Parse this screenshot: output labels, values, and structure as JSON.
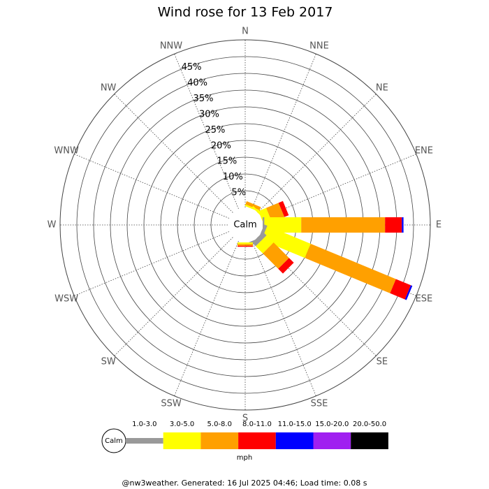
{
  "chart_data": {
    "type": "windrose",
    "title": "Wind rose for 13 Feb 2017",
    "directions": [
      "N",
      "NNE",
      "NE",
      "ENE",
      "E",
      "ESE",
      "SE",
      "SSE",
      "S",
      "SSW",
      "SW",
      "WSW",
      "W",
      "WNW",
      "NW",
      "NNW"
    ],
    "calm_label": "Calm",
    "unit": "mph",
    "rlim": [
      0,
      50
    ],
    "rticks": [
      {
        "value": 5,
        "label": "5%"
      },
      {
        "value": 10,
        "label": "10%"
      },
      {
        "value": 15,
        "label": "15%"
      },
      {
        "value": 20,
        "label": "20%"
      },
      {
        "value": 25,
        "label": "25%"
      },
      {
        "value": 30,
        "label": "30%"
      },
      {
        "value": 35,
        "label": "35%"
      },
      {
        "value": 40,
        "label": "40%"
      },
      {
        "value": 45,
        "label": "45%"
      }
    ],
    "series": [
      {
        "name": "1.0-3.0",
        "color": "#999999",
        "values": [
          0,
          0,
          0,
          0,
          0.5,
          1,
          1.5,
          1,
          0,
          0,
          0,
          0,
          0,
          0,
          0,
          0
        ]
      },
      {
        "name": "3.0-5.0",
        "color": "#ffff00",
        "values": [
          0,
          0.5,
          0.5,
          2.5,
          11,
          14,
          3,
          0,
          0.5,
          0,
          0,
          0,
          0,
          0,
          0,
          0
        ]
      },
      {
        "name": "5.0-8.0",
        "color": "#ffa000",
        "values": [
          0,
          1,
          0,
          4,
          25,
          27.5,
          6.5,
          0,
          0.5,
          0,
          0,
          0,
          0,
          0,
          0,
          0
        ]
      },
      {
        "name": "8.0-11.0",
        "color": "#ff0000",
        "values": [
          0,
          0,
          0,
          1.4,
          5,
          4.8,
          2,
          0,
          0.3,
          0,
          0,
          0,
          0,
          0,
          0,
          0
        ]
      },
      {
        "name": "11.0-15.0",
        "color": "#0000ff",
        "values": [
          0,
          0,
          0,
          0,
          0.5,
          0.5,
          0,
          0,
          0,
          0,
          0,
          0,
          0,
          0,
          0,
          0
        ]
      },
      {
        "name": "15.0-20.0",
        "color": "#a020f0",
        "values": [
          0,
          0,
          0,
          0,
          0,
          0,
          0,
          0,
          0,
          0,
          0,
          0,
          0,
          0,
          0,
          0
        ]
      },
      {
        "name": "20.0-50.0",
        "color": "#000000",
        "values": [
          0,
          0,
          0,
          0,
          0,
          0,
          0,
          0,
          0,
          0,
          0,
          0,
          0,
          0,
          0,
          0
        ]
      }
    ]
  },
  "footer": "@nw3weather.  Generated: 16 Jul 2025 04:46; Load time: 0.08 s"
}
